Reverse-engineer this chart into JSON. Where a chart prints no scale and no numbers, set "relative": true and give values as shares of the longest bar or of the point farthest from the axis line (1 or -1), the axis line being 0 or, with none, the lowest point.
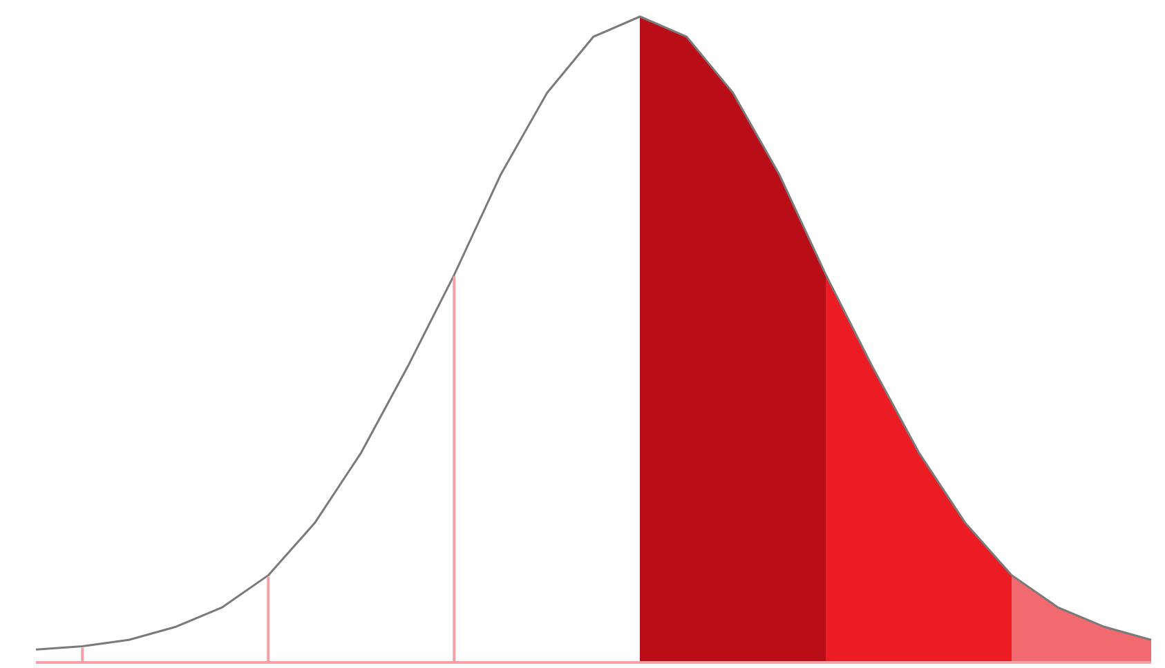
{
  "chart_data": {
    "type": "area",
    "relative": true,
    "grid": false,
    "legend": false,
    "categories": [
      null,
      null,
      null,
      null,
      null,
      null,
      null,
      null,
      null,
      null,
      null,
      null,
      null,
      null,
      null,
      null,
      null,
      null,
      null,
      null,
      null,
      null,
      null,
      null,
      null
    ],
    "series": [
      {
        "color": "#7a7a7a",
        "values": [
          0.02,
          0.025,
          0.035,
          0.055,
          0.085,
          0.135,
          0.216,
          0.325,
          0.458,
          0.6,
          0.755,
          0.882,
          0.969,
          1,
          0.969,
          0.882,
          0.755,
          0.6,
          0.458,
          0.325,
          0.216,
          0.135,
          0.085,
          0.055,
          0.035
        ],
        "colors": [
          "#ffffff",
          "#ffffff",
          "#ffffff",
          "#ffffff",
          "#ffffff",
          "#ffffff",
          "#ffffff",
          "#ffffff",
          "#ffffff",
          "#ffffff",
          "#ffffff",
          "#ffffff",
          "#ffffff",
          "#b90e17",
          "#b90e17",
          "#b90e17",
          "#b90e17",
          "#ec1c24",
          "#ec1c24",
          "#ec1c24",
          "#ec1c24",
          "#f06a70",
          "#f06a70",
          "#f06a70",
          "#f06a70"
        ]
      }
    ]
  }
}
